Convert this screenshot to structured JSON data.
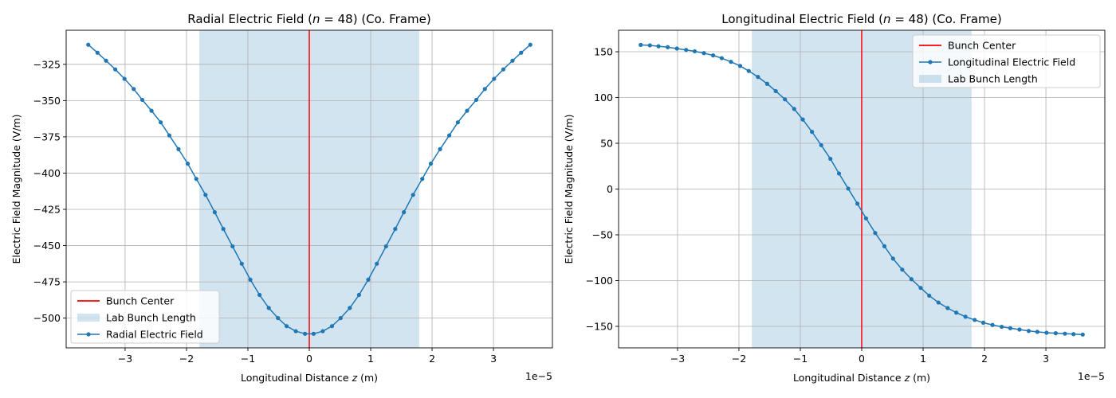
{
  "chart_data": [
    {
      "type": "line",
      "title": "Radial Electric Field ($n$ = 48) (Co. Frame)",
      "title_parts": [
        "Radial Electric Field (",
        "n",
        " = 48) (Co. Frame)"
      ],
      "xlabel": "Longitudinal Distance $z$ (m)",
      "xlabel_parts": [
        "Longitudinal Distance ",
        "z",
        " (m)"
      ],
      "ylabel": "Electric Field Magnitude (V/m)",
      "x_offset_label": "1e−5",
      "xlim": [
        -3.96,
        3.96
      ],
      "ylim": [
        -520.5,
        -301.5
      ],
      "xticks": [
        -3,
        -2,
        -1,
        0,
        1,
        2,
        3
      ],
      "xtick_labels": [
        "−3",
        "−2",
        "−1",
        "0",
        "1",
        "2",
        "3"
      ],
      "yticks": [
        -325,
        -350,
        -375,
        -400,
        -425,
        -450,
        -475,
        -500
      ],
      "ytick_labels": [
        "−325",
        "−350",
        "−375",
        "−400",
        "−425",
        "−450",
        "−475",
        "−500"
      ],
      "grid": true,
      "legend_placement": "lower-left",
      "legend": [
        "Bunch Center",
        "Lab Bunch Length",
        "Radial Electric Field"
      ],
      "colors": {
        "line": "#1f77b4",
        "center": "#ff0000",
        "span": "#1f77b4"
      },
      "bunch_center_x": 0,
      "span": [
        -1.79,
        1.79
      ],
      "series": [
        {
          "name": "Radial Electric Field",
          "x": [
            -3.6,
            -3.45,
            -3.31,
            -3.16,
            -3.01,
            -2.86,
            -2.72,
            -2.57,
            -2.42,
            -2.28,
            -2.13,
            -1.98,
            -1.84,
            -1.69,
            -1.54,
            -1.4,
            -1.25,
            -1.1,
            -0.96,
            -0.81,
            -0.66,
            -0.51,
            -0.37,
            -0.22,
            -0.07,
            0.07,
            0.22,
            0.37,
            0.51,
            0.66,
            0.81,
            0.96,
            1.1,
            1.25,
            1.4,
            1.54,
            1.69,
            1.84,
            1.98,
            2.13,
            2.28,
            2.42,
            2.57,
            2.72,
            2.86,
            3.01,
            3.16,
            3.31,
            3.45,
            3.6
          ],
          "y": [
            -311.5,
            -317,
            -322.5,
            -328.5,
            -335,
            -342,
            -349.5,
            -357,
            -365,
            -374,
            -383.5,
            -393.5,
            -404,
            -415,
            -427,
            -438.5,
            -450.5,
            -462.5,
            -473.5,
            -484,
            -493,
            -500,
            -505.5,
            -509,
            -510.8,
            -510.8,
            -509,
            -505.5,
            -500,
            -493,
            -484,
            -473.5,
            -462.5,
            -450.5,
            -438.5,
            -427,
            -415,
            -404,
            -393.5,
            -383.5,
            -374,
            -365,
            -357,
            -349.5,
            -342,
            -335,
            -328.5,
            -322.5,
            -317,
            -311.5
          ]
        }
      ]
    },
    {
      "type": "line",
      "title": "Longitudinal Electric Field ($n$ = 48) (Co. Frame)",
      "title_parts": [
        "Longitudinal Electric Field (",
        "n",
        " = 48) (Co. Frame)"
      ],
      "xlabel": "Longitudinal Distance $z$ (m)",
      "xlabel_parts": [
        "Longitudinal Distance ",
        "z",
        " (m)"
      ],
      "ylabel": "Electric Field Magnitude (V/m)",
      "x_offset_label": "1e−5",
      "xlim": [
        -3.96,
        3.96
      ],
      "ylim": [
        -173.5,
        173.5
      ],
      "xticks": [
        -3,
        -2,
        -1,
        0,
        1,
        2,
        3
      ],
      "xtick_labels": [
        "−3",
        "−2",
        "−1",
        "0",
        "1",
        "2",
        "3"
      ],
      "yticks": [
        150,
        100,
        50,
        0,
        -50,
        -100,
        -150
      ],
      "ytick_labels": [
        "150",
        "100",
        "50",
        "0",
        "−50",
        "−100",
        "−150"
      ],
      "grid": true,
      "legend_placement": "upper-right",
      "legend": [
        "Bunch Center",
        "Longitudinal Electric Field",
        "Lab Bunch Length"
      ],
      "colors": {
        "line": "#1f77b4",
        "center": "#ff0000",
        "span": "#1f77b4"
      },
      "bunch_center_x": 0,
      "span": [
        -1.79,
        1.79
      ],
      "series": [
        {
          "name": "Longitudinal Electric Field",
          "x": [
            -3.6,
            -3.45,
            -3.31,
            -3.16,
            -3.01,
            -2.86,
            -2.72,
            -2.57,
            -2.42,
            -2.28,
            -2.13,
            -1.98,
            -1.84,
            -1.69,
            -1.54,
            -1.4,
            -1.25,
            -1.1,
            -0.96,
            -0.81,
            -0.66,
            -0.51,
            -0.37,
            -0.22,
            -0.07,
            0.07,
            0.22,
            0.37,
            0.51,
            0.66,
            0.81,
            0.96,
            1.1,
            1.25,
            1.4,
            1.54,
            1.69,
            1.84,
            1.98,
            2.13,
            2.28,
            2.42,
            2.57,
            2.72,
            2.86,
            3.01,
            3.16,
            3.31,
            3.45,
            3.6
          ],
          "y": [
            157.5,
            157,
            156,
            155,
            153.5,
            152,
            150.5,
            148.5,
            146,
            143,
            139,
            134.5,
            129,
            122.5,
            115,
            107,
            98,
            87.5,
            76,
            62.5,
            48,
            33,
            17,
            0.5,
            -16,
            -32,
            -48,
            -62.5,
            -76,
            -88,
            -98.5,
            -108,
            -116.5,
            -124,
            -130,
            -135,
            -139.5,
            -143,
            -146,
            -148.5,
            -150.5,
            -152,
            -153.5,
            -155,
            -156,
            -157,
            -157.5,
            -158,
            -158.5,
            -159
          ]
        }
      ]
    }
  ]
}
